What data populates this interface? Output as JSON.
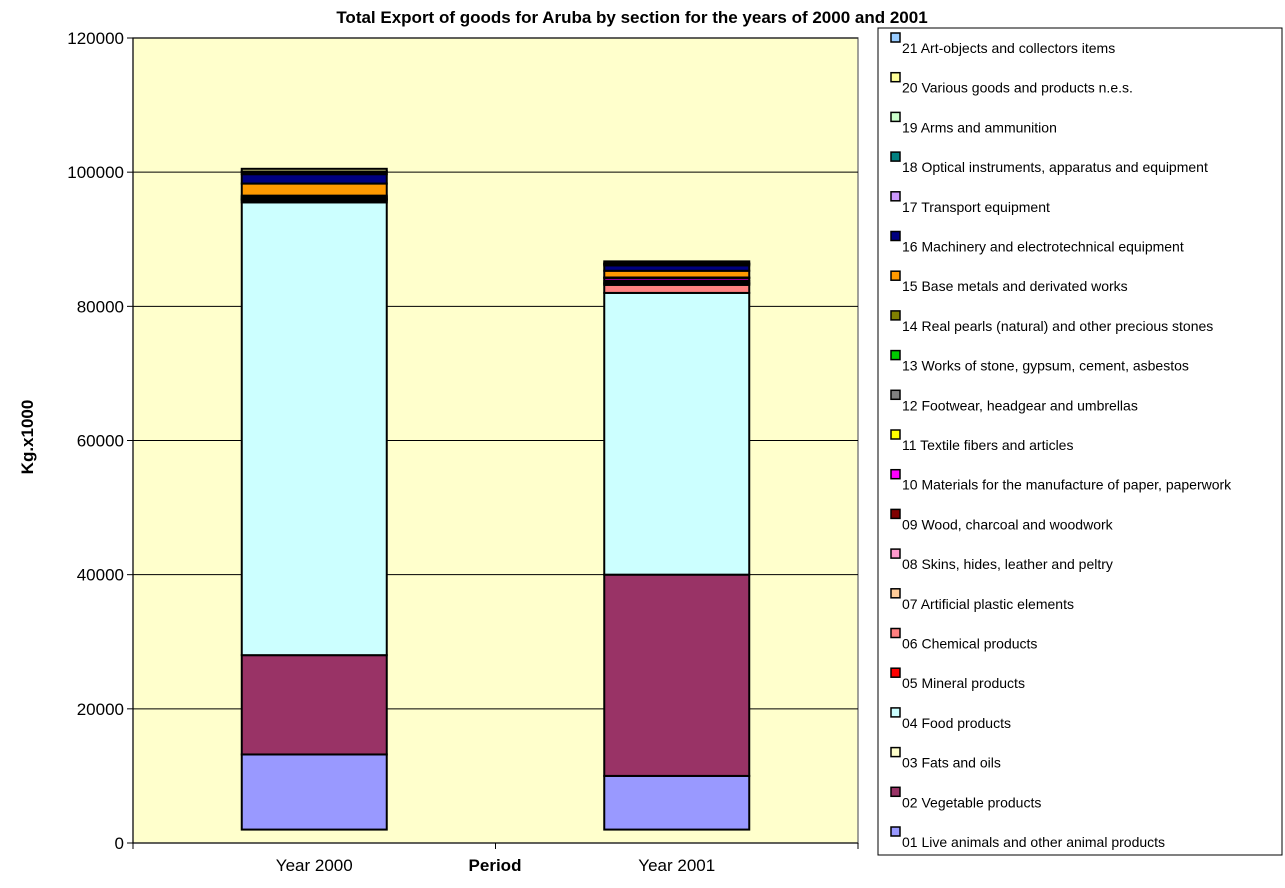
{
  "chart_data": {
    "type": "bar",
    "stacked": true,
    "title": "Total Export of goods for Aruba by section for the years of 2000 and 2001",
    "xlabel": "Period",
    "ylabel": "Kg.x1000",
    "categories": [
      "Year 2000",
      "Year 2001"
    ],
    "ylim": [
      0,
      120000
    ],
    "yticks": [
      "0",
      "20000",
      "40000",
      "60000",
      "80000",
      "100000",
      "120000"
    ],
    "grid": true,
    "legend_position": "right",
    "plot_background": "#ffffcc",
    "series": [
      {
        "name": "01 Live animals and other animal products",
        "color": "#9999ff",
        "values": [
          11200,
          8000
        ]
      },
      {
        "name": "02 Vegetable products",
        "color": "#993366",
        "values": [
          14800,
          30000
        ]
      },
      {
        "name": "03 Fats and oils",
        "color": "#ffffcc",
        "values": [
          0,
          0
        ]
      },
      {
        "name": "04 Food products",
        "color": "#ccffff",
        "values": [
          67500,
          42000
        ]
      },
      {
        "name": "05 Mineral products",
        "color": "#ff0000",
        "values": [
          0,
          0
        ]
      },
      {
        "name": "06 Chemical products",
        "color": "#ff8080",
        "values": [
          300,
          1200
        ]
      },
      {
        "name": "07 Artificial plastic elements",
        "color": "#ffcc99",
        "values": [
          100,
          200
        ]
      },
      {
        "name": "08 Skins, hides, leather and peltry",
        "color": "#ff99cc",
        "values": [
          100,
          100
        ]
      },
      {
        "name": "09 Wood, charcoal and woodwork",
        "color": "#800000",
        "values": [
          100,
          300
        ]
      },
      {
        "name": "10 Materials for the manufacture of paper, paperwork",
        "color": "#ff00ff",
        "values": [
          200,
          400
        ]
      },
      {
        "name": "11 Textile fibers and articles",
        "color": "#ffff00",
        "values": [
          0,
          0
        ]
      },
      {
        "name": "12 Footwear, headgear and umbrellas",
        "color": "#808080",
        "values": [
          0,
          0
        ]
      },
      {
        "name": "13 Works of stone, gypsum, cement, asbestos",
        "color": "#00cc00",
        "values": [
          200,
          100
        ]
      },
      {
        "name": "14 Real pearls (natural) and other precious stones",
        "color": "#808000",
        "values": [
          0,
          0
        ]
      },
      {
        "name": "15 Base metals and derivated works",
        "color": "#ff9900",
        "values": [
          1800,
          1000
        ]
      },
      {
        "name": "16 Machinery and electrotechnical equipment",
        "color": "#000080",
        "values": [
          1400,
          800
        ]
      },
      {
        "name": "17 Transport equipment",
        "color": "#cc99ff",
        "values": [
          300,
          200
        ]
      },
      {
        "name": "18 Optical instruments, apparatus and equipment",
        "color": "#008080",
        "values": [
          100,
          100
        ]
      },
      {
        "name": "19 Arms and ammunition",
        "color": "#ccffcc",
        "values": [
          0,
          0
        ]
      },
      {
        "name": "20 Various goods and products n.e.s.",
        "color": "#ffff99",
        "values": [
          400,
          300
        ]
      },
      {
        "name": "21 Art-objects and collectors items",
        "color": "#99ccff",
        "values": [
          0,
          0
        ]
      }
    ]
  }
}
